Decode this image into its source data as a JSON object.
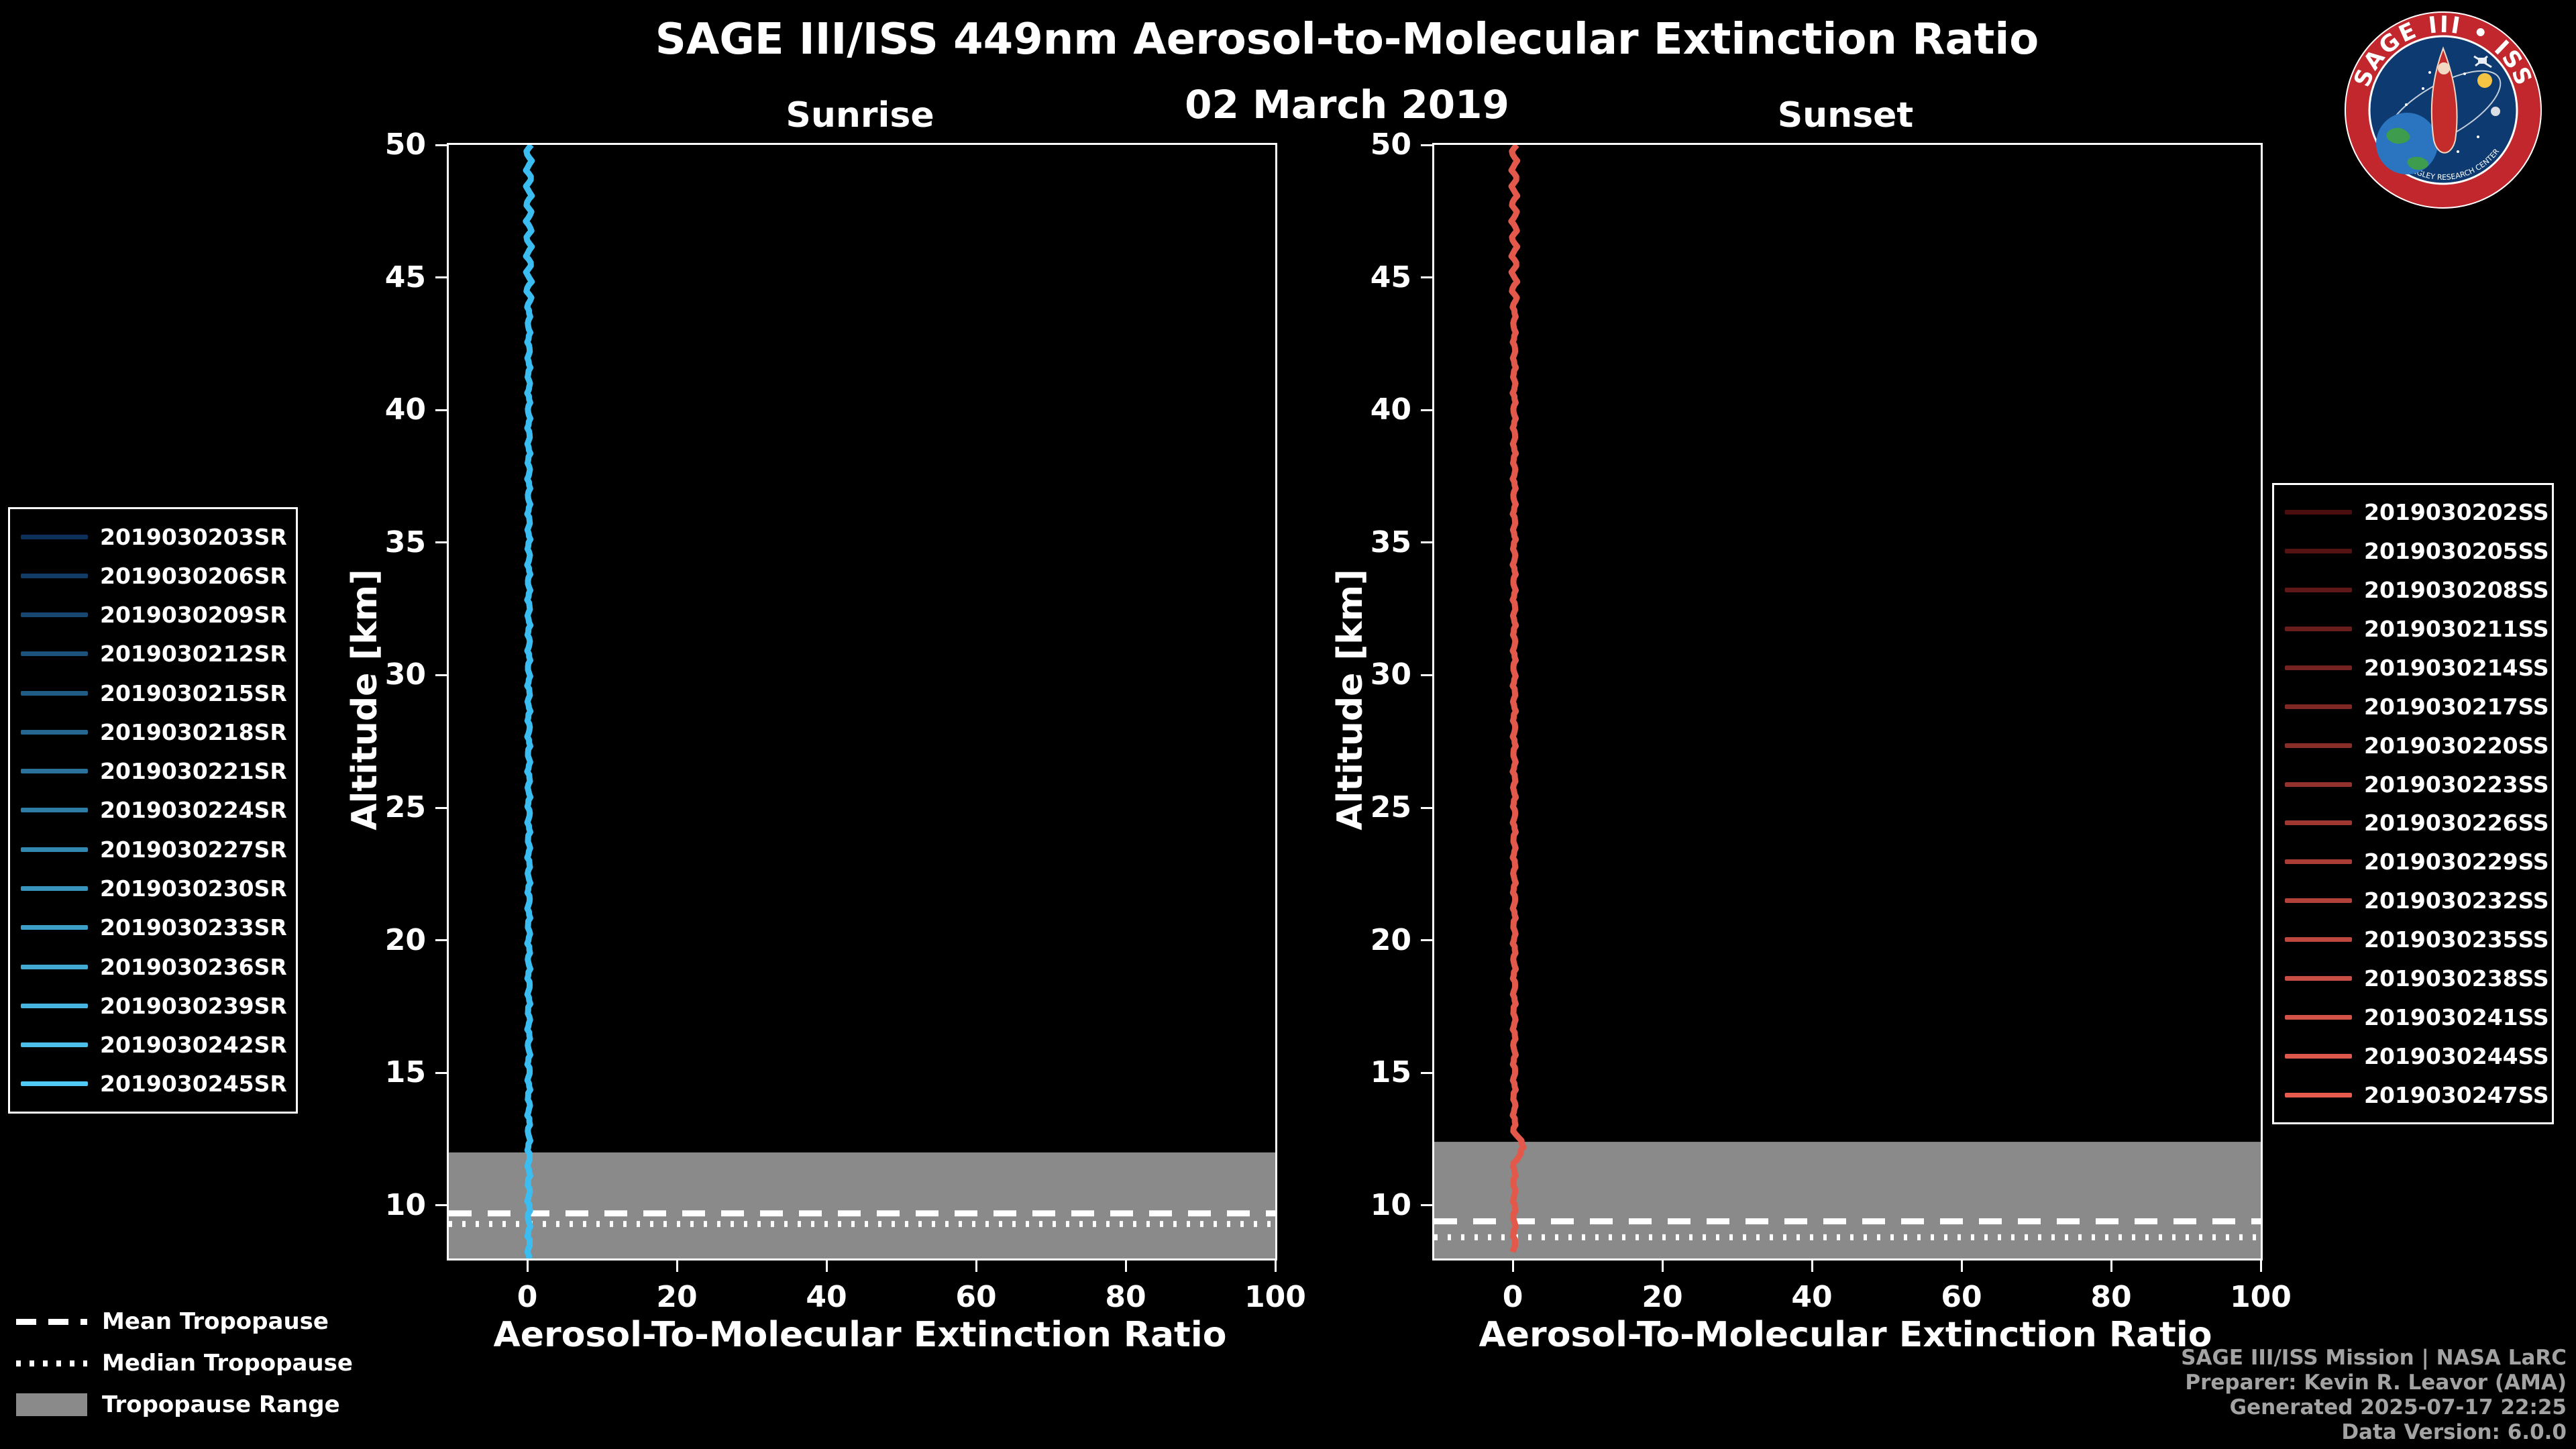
{
  "header": {
    "title": "SAGE III/ISS 449nm Aerosol-to-Molecular Extinction Ratio",
    "date": "02 March 2019"
  },
  "logo": {
    "text": "SAGE III • ISS",
    "subtext": "NASA LANGLEY RESEARCH CENTER"
  },
  "tropopause_legend": {
    "items": [
      {
        "label": "Mean Tropopause",
        "style": "dashed"
      },
      {
        "label": "Median Tropopause",
        "style": "dotted"
      },
      {
        "label": "Tropopause Range",
        "style": "patch",
        "color": "#8a8a8a"
      }
    ]
  },
  "footer": {
    "credits": [
      "SAGE III/ISS Mission | NASA LaRC",
      "Preparer: Kevin R. Leavor (AMA)",
      "Generated 2025-07-17 22:25",
      "Data Version: 6.0.0"
    ]
  },
  "chart_data": [
    {
      "type": "line",
      "title": "Sunrise",
      "xlabel": "Aerosol-To-Molecular Extinction Ratio",
      "ylabel": "Altitude [km]",
      "xlim": [
        -10.5,
        100
      ],
      "ylim": [
        8,
        50
      ],
      "xticks": [
        0,
        20,
        40,
        60,
        80,
        100
      ],
      "yticks": [
        50,
        45,
        40,
        35,
        30,
        25,
        20,
        15,
        10
      ],
      "grid": false,
      "tropopause": {
        "mean_km": 9.7,
        "median_km": 9.3,
        "range_top_km": 12.0,
        "range_bottom_km": 8.0,
        "band_color": "#8a8a8a"
      },
      "profile": {
        "description": "15 overlapping sunrise profiles; extinction ratio ~0 at all altitudes",
        "ratio_mean": 0.2,
        "ratio_wiggle": 0.25,
        "alt_min_km": 8.0,
        "alt_max_km": 50.0,
        "line_color": "#3bbdf2"
      },
      "series": [
        {
          "name": "2019030203SR",
          "color": "#0d305a"
        },
        {
          "name": "2019030206SR",
          "color": "#123b65"
        },
        {
          "name": "2019030209SR",
          "color": "#174670"
        },
        {
          "name": "2019030212SR",
          "color": "#1b517b"
        },
        {
          "name": "2019030215SR",
          "color": "#205c86"
        },
        {
          "name": "2019030218SR",
          "color": "#256791"
        },
        {
          "name": "2019030221SR",
          "color": "#2a729c"
        },
        {
          "name": "2019030224SR",
          "color": "#2e7da7"
        },
        {
          "name": "2019030227SR",
          "color": "#3388b2"
        },
        {
          "name": "2019030230SR",
          "color": "#3893bd"
        },
        {
          "name": "2019030233SR",
          "color": "#3d9ec8"
        },
        {
          "name": "2019030236SR",
          "color": "#42a9d3"
        },
        {
          "name": "2019030239SR",
          "color": "#46b4de"
        },
        {
          "name": "2019030242SR",
          "color": "#4bbfe9"
        },
        {
          "name": "2019030245SR",
          "color": "#50caf4"
        }
      ]
    },
    {
      "type": "line",
      "title": "Sunset",
      "xlabel": "Aerosol-To-Molecular Extinction Ratio",
      "ylabel": "Altitude [km]",
      "xlim": [
        -10.5,
        100
      ],
      "ylim": [
        8,
        50
      ],
      "xticks": [
        0,
        20,
        40,
        60,
        80,
        100
      ],
      "yticks": [
        50,
        45,
        40,
        35,
        30,
        25,
        20,
        15,
        10
      ],
      "grid": false,
      "tropopause": {
        "mean_km": 9.4,
        "median_km": 8.8,
        "range_top_km": 12.4,
        "range_bottom_km": 8.0,
        "band_color": "#8a8a8a"
      },
      "profile": {
        "description": "16 overlapping sunset profiles; extinction ratio ~0 with small enhancement near 12 km",
        "ratio_mean": 0.2,
        "ratio_wiggle": 0.25,
        "alt_min_km": 8.2,
        "alt_max_km": 50.0,
        "line_color": "#e2584b",
        "bump": {
          "alt_km": 12.2,
          "ratio": 1.3
        }
      },
      "series": [
        {
          "name": "2019030202SS",
          "color": "#4a0e0e"
        },
        {
          "name": "2019030205SS",
          "color": "#551312"
        },
        {
          "name": "2019030208SS",
          "color": "#5f1817"
        },
        {
          "name": "2019030211SS",
          "color": "#6a1e1b"
        },
        {
          "name": "2019030214SS",
          "color": "#742320"
        },
        {
          "name": "2019030217SS",
          "color": "#7f2824"
        },
        {
          "name": "2019030220SS",
          "color": "#892d28"
        },
        {
          "name": "2019030223SS",
          "color": "#94322d"
        },
        {
          "name": "2019030226SS",
          "color": "#9e3831"
        },
        {
          "name": "2019030229SS",
          "color": "#a93d36"
        },
        {
          "name": "2019030232SS",
          "color": "#b3423a"
        },
        {
          "name": "2019030235SS",
          "color": "#be473e"
        },
        {
          "name": "2019030238SS",
          "color": "#c84d43"
        },
        {
          "name": "2019030241SS",
          "color": "#d35247"
        },
        {
          "name": "2019030244SS",
          "color": "#dd574c"
        },
        {
          "name": "2019030247SS",
          "color": "#e85c50"
        }
      ]
    }
  ]
}
